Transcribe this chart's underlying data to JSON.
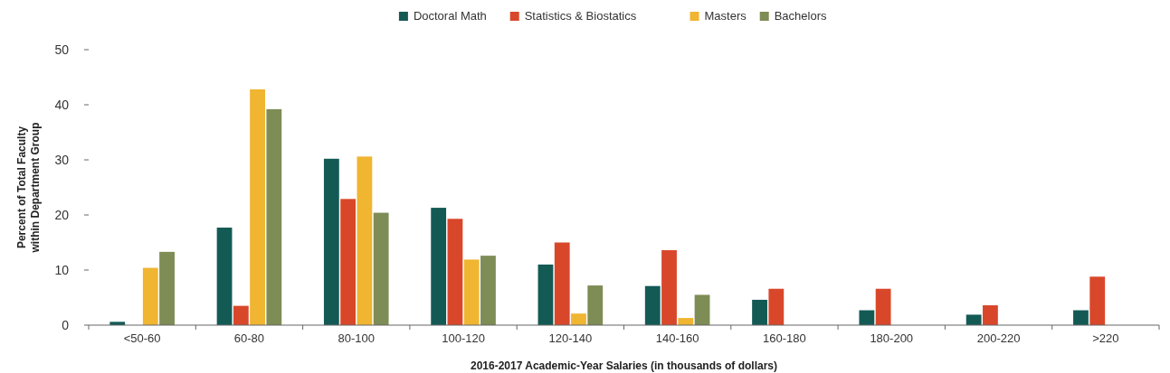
{
  "chart_data": {
    "type": "bar",
    "xlabel": "2016-2017 Academic-Year Salaries (in thousands of dollars)",
    "ylabel": "Percent of Total Faculty\nwithin Department Group",
    "categories": [
      "<50-60",
      "60-80",
      "80-100",
      "100-120",
      "120-140",
      "140-160",
      "160-180",
      "180-200",
      "200-220",
      ">220"
    ],
    "series": [
      {
        "name": "Doctoral Math",
        "color": "#135a55",
        "values": [
          0.6,
          17.7,
          30.2,
          21.3,
          11.0,
          7.1,
          4.6,
          2.7,
          1.9,
          2.7
        ]
      },
      {
        "name": "Statistics & Biostatics",
        "color": "#d9472a",
        "values": [
          0,
          3.5,
          22.9,
          19.3,
          15.0,
          13.6,
          6.6,
          6.6,
          3.6,
          8.8
        ]
      },
      {
        "name": "Masters",
        "color": "#f0b531",
        "values": [
          10.4,
          42.8,
          30.6,
          11.9,
          2.1,
          1.3,
          0,
          0,
          0,
          0
        ]
      },
      {
        "name": "Bachelors",
        "color": "#7e8c55",
        "values": [
          13.3,
          39.2,
          20.4,
          12.6,
          7.2,
          5.5,
          0,
          0,
          0,
          0
        ]
      }
    ],
    "ylim": [
      0,
      50
    ],
    "yticks": [
      0,
      10,
      20,
      30,
      40,
      50
    ],
    "legend": "top",
    "grid": false
  }
}
